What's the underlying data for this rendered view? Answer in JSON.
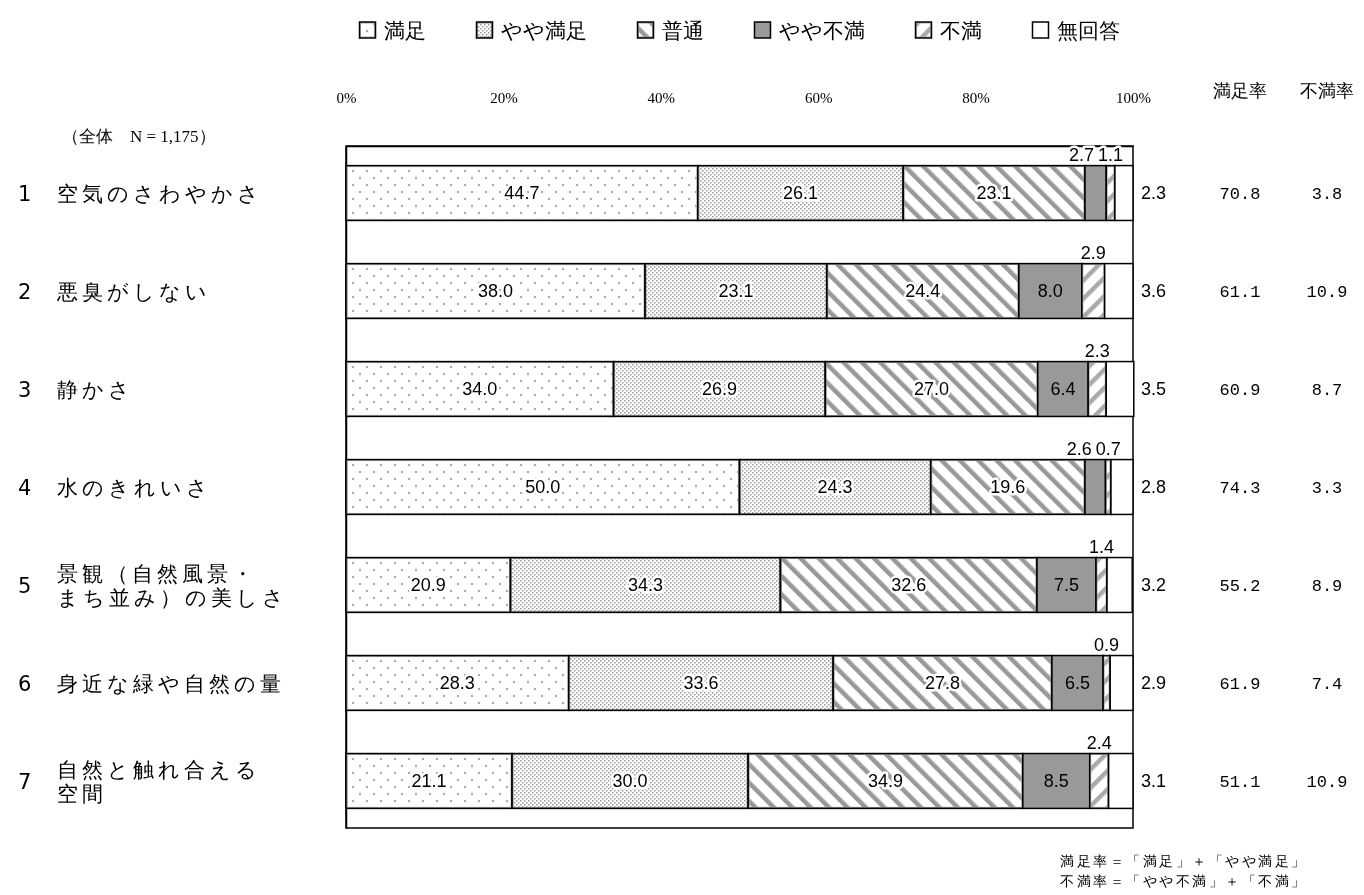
{
  "chart_data": {
    "type": "bar",
    "orientation": "horizontal",
    "stacked": true,
    "categories": [
      "1　空気のさわやかさ",
      "2　悪臭がしない",
      "3　静かさ",
      "4　水のきれいさ",
      "5　景観（自然風景・まち並み）の美しさ",
      "6　身近な緑や自然の量",
      "7　自然と触れ合える空間"
    ],
    "series": [
      {
        "name": "満足",
        "color": "#aaaaaa",
        "values": [
          44.7,
          38.0,
          34.0,
          50.0,
          20.9,
          28.3,
          21.1
        ],
        "value_labels": [
          "44.7",
          "38.0",
          "34.0",
          "50.0",
          "20.9",
          "28.3",
          "21.1"
        ]
      },
      {
        "name": "やや満足",
        "color": "#999999",
        "values": [
          26.1,
          23.1,
          26.9,
          24.3,
          34.3,
          33.6,
          30.0
        ],
        "value_labels": [
          "26.1",
          "23.1",
          "26.9",
          "24.3",
          "34.3",
          "33.6",
          "30.0"
        ]
      },
      {
        "name": "普通",
        "color": "#999999",
        "values": [
          23.1,
          24.4,
          27.0,
          19.6,
          32.6,
          27.8,
          34.9
        ],
        "value_labels": [
          "23.1",
          "24.4",
          "27.0",
          "19.6",
          "32.6",
          "27.8",
          "34.9"
        ]
      },
      {
        "name": "やや不満",
        "color": "#999999",
        "values": [
          2.7,
          8.0,
          6.4,
          2.6,
          7.5,
          6.5,
          8.5
        ],
        "value_labels": [
          "2.7",
          "8.0",
          "6.4",
          "2.6",
          "7.5",
          "6.5",
          "8.5"
        ]
      },
      {
        "name": "不満",
        "color": "#aaaaaa",
        "values": [
          1.1,
          2.9,
          2.3,
          0.7,
          1.4,
          0.9,
          2.4
        ],
        "value_labels": [
          "1.1",
          "2.9",
          "2.3",
          "0.7",
          "1.4",
          "0.9",
          "2.4"
        ]
      },
      {
        "name": "無回答",
        "color": "#ffffff",
        "values": [
          2.3,
          3.6,
          3.5,
          2.8,
          3.2,
          2.9,
          3.1
        ],
        "value_labels": [
          "2.3",
          "3.6",
          "3.5",
          "2.8",
          "3.2",
          "2.9",
          "3.1"
        ]
      }
    ],
    "xlim": [
      0,
      100
    ],
    "xticks": [
      {
        "value": 0,
        "label": "0%"
      },
      {
        "value": 20,
        "label": "20%"
      },
      {
        "value": 40,
        "label": "40%"
      },
      {
        "value": 60,
        "label": "60%"
      },
      {
        "value": 80,
        "label": "80%"
      },
      {
        "value": 100,
        "label": "100%"
      }
    ],
    "legend": "top",
    "annotations": [
      "（全体　N = 1,175）",
      "満足率",
      "不満率",
      "70.8",
      "3.8",
      "61.1",
      "10.9",
      "60.9",
      "8.7",
      "74.3",
      "3.3",
      "55.2",
      "8.9",
      "61.9",
      "7.4",
      "51.1",
      "10.9",
      "満足率＝「満足」＋「やや満足」",
      "不満率＝「やや不満」＋「不満」"
    ]
  }
}
